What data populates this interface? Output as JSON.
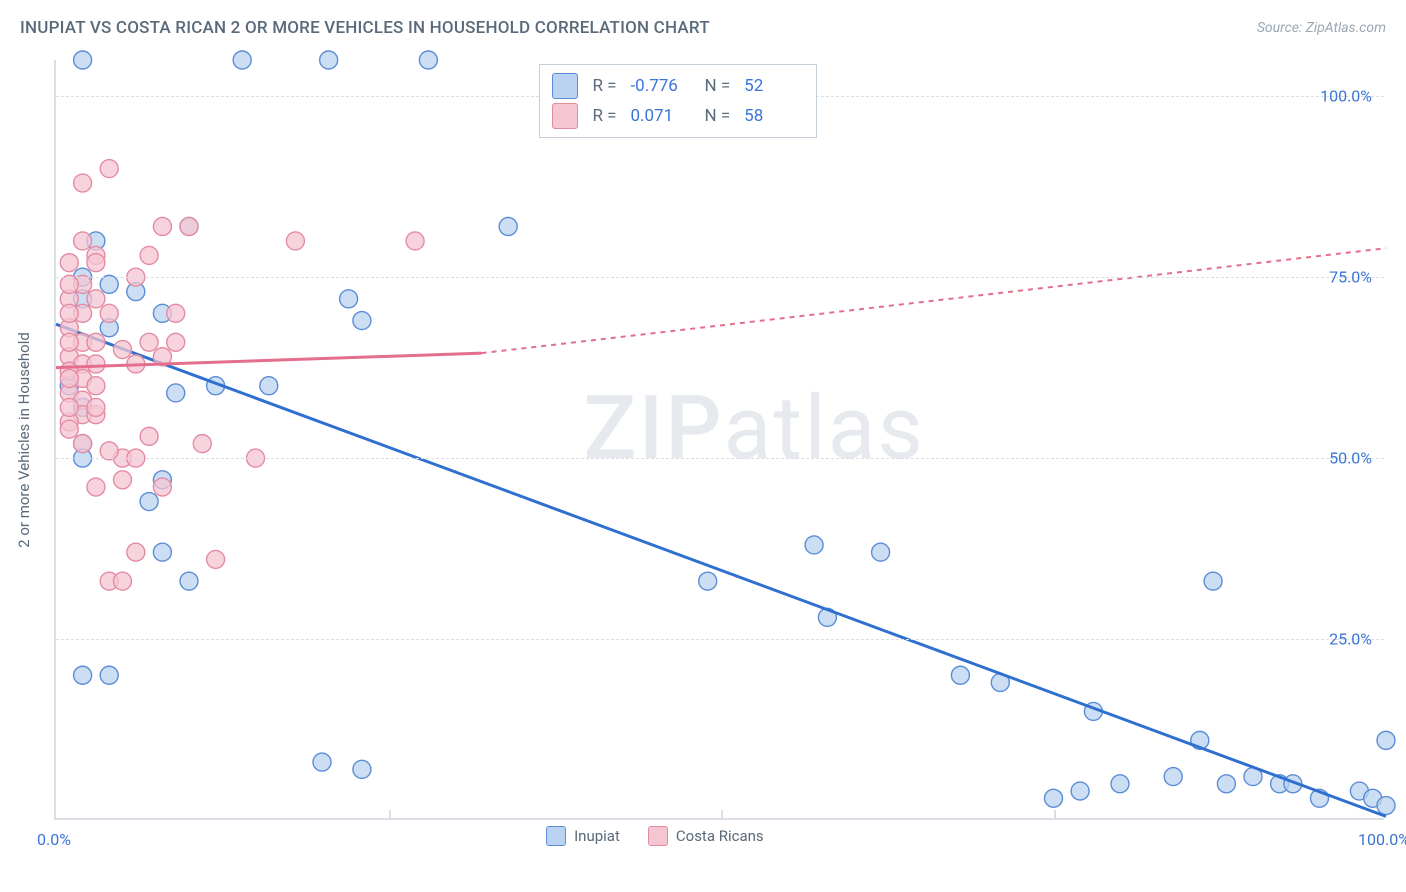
{
  "title": "INUPIAT VS COSTA RICAN 2 OR MORE VEHICLES IN HOUSEHOLD CORRELATION CHART",
  "source": "Source: ZipAtlas.com",
  "y_axis_label": "2 or more Vehicles in Household",
  "watermark_a": "ZIP",
  "watermark_b": "atlas",
  "chart": {
    "type": "scatter",
    "background_color": "#ffffff",
    "grid_color": "#d9dfe5",
    "axis_color": "#d9dfe5",
    "tick_label_color": "#3a74d8",
    "axis_label_color": "#5a6a7a",
    "xlim": [
      0,
      100
    ],
    "ylim": [
      0,
      105
    ],
    "x_ticks_major": [
      0,
      100
    ],
    "x_tick_labels": [
      "0.0%",
      "100.0%"
    ],
    "x_ticks_minor": [
      25,
      50,
      75
    ],
    "y_ticks": [
      25,
      50,
      75,
      100
    ],
    "y_tick_labels": [
      "25.0%",
      "50.0%",
      "75.0%",
      "100.0%"
    ],
    "marker_radius": 9,
    "marker_stroke_width": 1.4,
    "trend_line_width": 3,
    "trend_dash": "5,5",
    "series": [
      {
        "name": "Inupiat",
        "fill": "#b9d3f0",
        "stroke": "#5b8dd6",
        "stats": {
          "r": "-0.776",
          "n": "52"
        },
        "trend": {
          "color": "#2f6fd0",
          "solid_from": [
            0,
            68.5
          ],
          "solid_to": [
            100,
            0.5
          ],
          "dashed_from": null,
          "dashed_to": null
        },
        "points": [
          [
            2,
            105
          ],
          [
            14,
            105
          ],
          [
            20.5,
            105
          ],
          [
            28,
            105
          ],
          [
            3,
            80
          ],
          [
            10,
            82
          ],
          [
            2,
            75
          ],
          [
            2,
            72
          ],
          [
            4,
            74
          ],
          [
            6,
            73
          ],
          [
            8,
            70
          ],
          [
            34,
            82
          ],
          [
            22,
            72
          ],
          [
            4,
            68
          ],
          [
            2,
            52
          ],
          [
            2,
            50
          ],
          [
            1,
            60
          ],
          [
            2,
            57
          ],
          [
            16,
            60
          ],
          [
            9,
            59
          ],
          [
            8,
            47
          ],
          [
            12,
            60
          ],
          [
            23,
            69
          ],
          [
            4,
            20
          ],
          [
            2,
            20
          ],
          [
            7,
            44
          ],
          [
            10,
            33
          ],
          [
            8,
            37
          ],
          [
            20,
            8
          ],
          [
            23,
            7
          ],
          [
            49,
            33
          ],
          [
            58,
            28
          ],
          [
            57,
            38
          ],
          [
            62,
            37
          ],
          [
            71,
            19
          ],
          [
            68,
            20
          ],
          [
            78,
            15
          ],
          [
            75,
            3
          ],
          [
            77,
            4
          ],
          [
            80,
            5
          ],
          [
            86,
            11
          ],
          [
            84,
            6
          ],
          [
            88,
            5
          ],
          [
            87,
            33
          ],
          [
            90,
            6
          ],
          [
            92,
            5
          ],
          [
            93,
            5
          ],
          [
            95,
            3
          ],
          [
            98,
            4
          ],
          [
            99,
            3
          ],
          [
            100,
            11
          ],
          [
            100,
            2
          ]
        ]
      },
      {
        "name": "Costa Ricans",
        "fill": "#f4c6d2",
        "stroke": "#e48ba4",
        "stats": {
          "r": "0.071",
          "n": "58"
        },
        "trend": {
          "color": "#e36f8c",
          "solid_from": [
            0,
            62.5
          ],
          "solid_to": [
            32,
            64.5
          ],
          "dashed_from": [
            32,
            64.5
          ],
          "dashed_to": [
            100,
            79
          ]
        },
        "points": [
          [
            2,
            74
          ],
          [
            1,
            72
          ],
          [
            3,
            72
          ],
          [
            2,
            70
          ],
          [
            4,
            70
          ],
          [
            1,
            68
          ],
          [
            2,
            66
          ],
          [
            3,
            66
          ],
          [
            1,
            64
          ],
          [
            2,
            63
          ],
          [
            3,
            63
          ],
          [
            1,
            62
          ],
          [
            2,
            61
          ],
          [
            3,
            60
          ],
          [
            1,
            59
          ],
          [
            2,
            58
          ],
          [
            2,
            56
          ],
          [
            3,
            56
          ],
          [
            1,
            55
          ],
          [
            3,
            57
          ],
          [
            4,
            90
          ],
          [
            2,
            80
          ],
          [
            3,
            78
          ],
          [
            7,
            78
          ],
          [
            8,
            82
          ],
          [
            10,
            82
          ],
          [
            9,
            70
          ],
          [
            9,
            66
          ],
          [
            5,
            65
          ],
          [
            6,
            63
          ],
          [
            7,
            66
          ],
          [
            8,
            64
          ],
          [
            18,
            80
          ],
          [
            27,
            80
          ],
          [
            5,
            50
          ],
          [
            4,
            51
          ],
          [
            6,
            50
          ],
          [
            7,
            53
          ],
          [
            5,
            47
          ],
          [
            3,
            46
          ],
          [
            8,
            46
          ],
          [
            2,
            52
          ],
          [
            11,
            52
          ],
          [
            15,
            50
          ],
          [
            4,
            33
          ],
          [
            5,
            33
          ],
          [
            6,
            37
          ],
          [
            12,
            36
          ],
          [
            6,
            75
          ],
          [
            2,
            88
          ],
          [
            1,
            77
          ],
          [
            3,
            77
          ],
          [
            1,
            74
          ],
          [
            1,
            70
          ],
          [
            1,
            66
          ],
          [
            1,
            61
          ],
          [
            1,
            57
          ],
          [
            1,
            54
          ]
        ]
      }
    ]
  },
  "legend_box": {
    "label_r": "R =",
    "label_n": "N ="
  },
  "bottom_legend": {
    "items": [
      "Inupiat",
      "Costa Ricans"
    ]
  }
}
